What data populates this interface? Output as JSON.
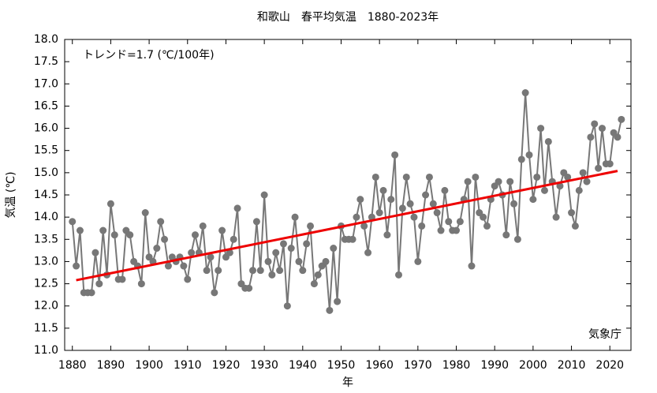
{
  "chart_data": {
    "type": "line",
    "title": "和歌山　春平均気温　1880-2023年",
    "x_label": "年",
    "y_label": "気温 (℃)",
    "annotation": "トレンド=1.7 (℃/100年)",
    "credit": "気象庁",
    "xlim": [
      1878,
      2025.5
    ],
    "ylim": [
      11,
      18
    ],
    "xticks": [
      1880,
      1890,
      1900,
      1910,
      1920,
      1930,
      1940,
      1950,
      1960,
      1970,
      1980,
      1990,
      2000,
      2010,
      2020
    ],
    "yticks": [
      {
        "value": 11,
        "label": "11.0"
      },
      11.5,
      {
        "value": 12,
        "label": "12.0"
      },
      12.5,
      {
        "value": 13,
        "label": "13.0"
      },
      13.5,
      {
        "value": 14,
        "label": "14.0"
      },
      14.5,
      {
        "value": 15,
        "label": "15.0"
      },
      15.5,
      {
        "value": 16,
        "label": "16.0"
      },
      16.5,
      {
        "value": 17,
        "label": "17.0"
      },
      17.5,
      {
        "value": 18,
        "label": "18.0"
      }
    ],
    "grid": false,
    "series": [
      {
        "color": "#777777",
        "markers": true,
        "x": [
          1880,
          1881,
          1882,
          1883,
          1884,
          1885,
          1886,
          1887,
          1888,
          1889,
          1890,
          1891,
          1892,
          1893,
          1894,
          1895,
          1896,
          1897,
          1898,
          1899,
          1900,
          1901,
          1902,
          1903,
          1904,
          1905,
          1906,
          1907,
          1908,
          1909,
          1910,
          1911,
          1912,
          1913,
          1914,
          1915,
          1916,
          1917,
          1918,
          1919,
          1920,
          1921,
          1922,
          1923,
          1924,
          1925,
          1926,
          1927,
          1928,
          1929,
          1930,
          1931,
          1932,
          1933,
          1934,
          1935,
          1936,
          1937,
          1938,
          1939,
          1940,
          1941,
          1942,
          1943,
          1944,
          1945,
          1946,
          1947,
          1948,
          1949,
          1950,
          1951,
          1952,
          1953,
          1954,
          1955,
          1956,
          1957,
          1958,
          1959,
          1960,
          1961,
          1962,
          1963,
          1964,
          1965,
          1966,
          1967,
          1968,
          1969,
          1970,
          1971,
          1972,
          1973,
          1974,
          1975,
          1976,
          1977,
          1978,
          1979,
          1980,
          1981,
          1982,
          1983,
          1984,
          1985,
          1986,
          1987,
          1988,
          1989,
          1990,
          1991,
          1992,
          1993,
          1994,
          1995,
          1996,
          1997,
          1998,
          1999,
          2000,
          2001,
          2002,
          2003,
          2004,
          2005,
          2006,
          2007,
          2008,
          2009,
          2010,
          2011,
          2012,
          2013,
          2014,
          2015,
          2016,
          2017,
          2018,
          2019,
          2020,
          2021,
          2022,
          2023
        ],
        "values": [
          13.9,
          12.9,
          13.7,
          12.3,
          12.3,
          12.3,
          13.2,
          12.5,
          13.7,
          12.7,
          14.3,
          13.6,
          12.6,
          12.6,
          13.7,
          13.6,
          13.0,
          12.9,
          12.5,
          14.1,
          13.1,
          13.0,
          13.3,
          13.9,
          13.5,
          12.9,
          13.1,
          13.0,
          13.1,
          12.9,
          12.6,
          13.2,
          13.6,
          13.2,
          13.8,
          12.8,
          13.1,
          12.3,
          12.8,
          13.7,
          13.1,
          13.2,
          13.5,
          14.2,
          12.5,
          12.4,
          12.4,
          12.8,
          13.9,
          12.8,
          14.5,
          13.0,
          12.7,
          13.2,
          12.8,
          13.4,
          12.0,
          13.3,
          14.0,
          13.0,
          12.8,
          13.4,
          13.8,
          12.5,
          12.7,
          12.9,
          13.0,
          11.9,
          13.3,
          12.1,
          13.8,
          13.5,
          13.5,
          13.5,
          14.0,
          14.4,
          13.8,
          13.2,
          14.0,
          14.9,
          14.1,
          14.6,
          13.6,
          14.4,
          15.4,
          12.7,
          14.2,
          14.9,
          14.3,
          14.0,
          13.0,
          13.8,
          14.5,
          14.9,
          14.3,
          14.1,
          13.7,
          14.6,
          13.9,
          13.7,
          13.7,
          13.9,
          14.4,
          14.8,
          12.9,
          14.9,
          14.1,
          14.0,
          13.8,
          14.4,
          14.7,
          14.8,
          14.5,
          13.6,
          14.8,
          14.3,
          13.5,
          15.3,
          16.8,
          15.4,
          14.4,
          14.9,
          16.0,
          14.6,
          15.7,
          14.8,
          14.0,
          14.7,
          15.0,
          14.9,
          14.1,
          13.8,
          14.6,
          15.0,
          14.8,
          15.8,
          16.1,
          15.1,
          16.0,
          15.2,
          15.2,
          15.9,
          15.8,
          16.2
        ]
      },
      {
        "color": "#ee0000",
        "markers": false,
        "x": [
          1881,
          2022
        ],
        "values": [
          12.58,
          15.04
        ]
      }
    ]
  }
}
